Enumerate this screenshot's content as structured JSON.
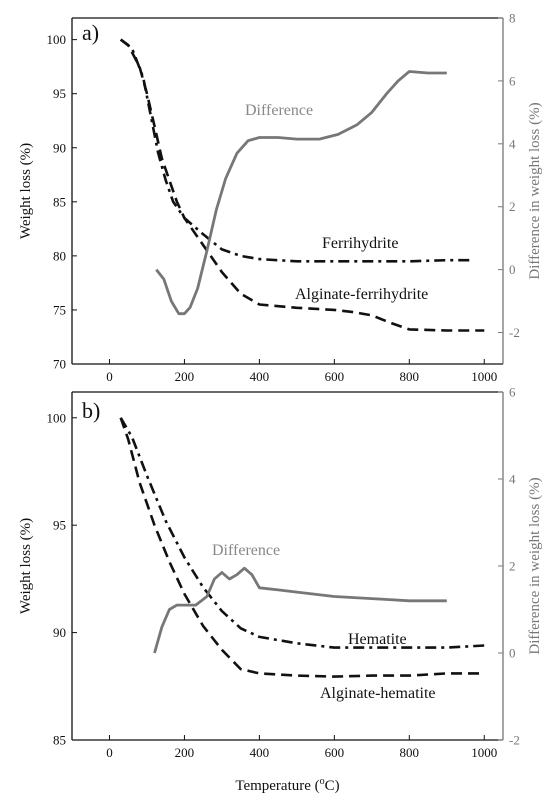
{
  "chart_data": [
    {
      "type": "line",
      "panel_label": "a)",
      "xlabel": "Temperature (oC)",
      "ylabel": "Weight loss (%)",
      "y2label": "Difference in weight loss (%)",
      "xlim": [
        -100,
        1050
      ],
      "ylim": [
        70,
        102
      ],
      "y2lim": [
        -3,
        8
      ],
      "x_ticks": [
        0,
        200,
        400,
        600,
        800,
        1000
      ],
      "y_ticks": [
        70,
        75,
        80,
        85,
        90,
        95,
        100
      ],
      "y2_ticks": [
        -2,
        0,
        2,
        4,
        6,
        8
      ],
      "colors": {
        "primary": "#111111",
        "difference": "#777777"
      },
      "series": [
        {
          "name": "Ferrihydrite",
          "axis": "left",
          "style": "dashdot",
          "x": [
            30,
            60,
            90,
            110,
            130,
            150,
            170,
            200,
            250,
            300,
            350,
            400,
            500,
            600,
            700,
            800,
            900,
            970
          ],
          "y": [
            100,
            99.2,
            96.5,
            93,
            89.5,
            87,
            85,
            83.5,
            82,
            80.6,
            80,
            79.7,
            79.5,
            79.5,
            79.5,
            79.5,
            79.6,
            79.6
          ]
        },
        {
          "name": "Alginate-ferrihydrite",
          "axis": "left",
          "style": "dashed",
          "x": [
            30,
            50,
            80,
            100,
            120,
            140,
            160,
            180,
            200,
            250,
            300,
            350,
            400,
            500,
            600,
            650,
            700,
            750,
            800,
            900,
            1000
          ],
          "y": [
            100,
            99.5,
            97.5,
            95,
            92,
            89,
            87,
            85,
            83.5,
            81,
            78.5,
            76.5,
            75.5,
            75.2,
            75,
            74.8,
            74.5,
            73.8,
            73.2,
            73.1,
            73.1
          ]
        },
        {
          "name": "Difference",
          "axis": "right",
          "style": "solid",
          "x": [
            125,
            145,
            165,
            185,
            200,
            215,
            235,
            260,
            285,
            310,
            340,
            370,
            400,
            450,
            500,
            560,
            610,
            660,
            700,
            740,
            770,
            790,
            800,
            850,
            900
          ],
          "y": [
            0,
            -0.3,
            -1.0,
            -1.4,
            -1.4,
            -1.2,
            -0.6,
            0.6,
            1.9,
            2.9,
            3.7,
            4.1,
            4.2,
            4.2,
            4.15,
            4.15,
            4.3,
            4.6,
            5.0,
            5.6,
            6.0,
            6.2,
            6.3,
            6.25,
            6.25
          ]
        }
      ]
    },
    {
      "type": "line",
      "panel_label": "b)",
      "xlabel": "Temperature (oC)",
      "ylabel": "Weight loss (%)",
      "y2label": "Difference in weight loss (%)",
      "xlim": [
        -100,
        1050
      ],
      "ylim": [
        85,
        101.2
      ],
      "y2lim": [
        -2,
        6
      ],
      "x_ticks": [
        0,
        200,
        400,
        600,
        800,
        1000
      ],
      "y_ticks": [
        85,
        90,
        95,
        100
      ],
      "y2_ticks": [
        -2,
        0,
        2,
        4,
        6
      ],
      "colors": {
        "primary": "#111111",
        "difference": "#777777"
      },
      "series": [
        {
          "name": "Hematite",
          "axis": "left",
          "style": "dashdot",
          "x": [
            30,
            60,
            100,
            150,
            200,
            250,
            300,
            350,
            400,
            500,
            600,
            700,
            800,
            900,
            1000
          ],
          "y": [
            100,
            99.1,
            97.3,
            95.2,
            93.5,
            92.1,
            91,
            90.2,
            89.8,
            89.5,
            89.3,
            89.3,
            89.3,
            89.3,
            89.4
          ]
        },
        {
          "name": "Alginate-hematite",
          "axis": "left",
          "style": "dashed",
          "x": [
            30,
            50,
            80,
            120,
            160,
            200,
            250,
            300,
            350,
            400,
            500,
            600,
            700,
            800,
            900,
            1000
          ],
          "y": [
            100,
            99,
            97,
            95,
            93.3,
            91.8,
            90.3,
            89.2,
            88.3,
            88.1,
            88,
            87.95,
            88,
            88,
            88.1,
            88.1
          ]
        },
        {
          "name": "Difference",
          "axis": "right",
          "style": "solid",
          "x": [
            120,
            140,
            160,
            180,
            200,
            230,
            260,
            280,
            300,
            320,
            340,
            360,
            380,
            400,
            450,
            500,
            600,
            700,
            800,
            900
          ],
          "y": [
            0,
            0.6,
            1.0,
            1.1,
            1.1,
            1.1,
            1.3,
            1.7,
            1.85,
            1.7,
            1.8,
            1.95,
            1.8,
            1.5,
            1.45,
            1.4,
            1.3,
            1.25,
            1.2,
            1.2
          ]
        }
      ]
    }
  ]
}
